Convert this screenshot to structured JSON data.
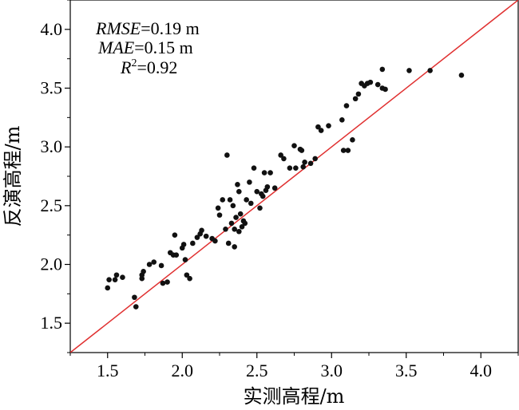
{
  "chart_data": {
    "type": "scatter",
    "xlabel": "实测高程/m",
    "ylabel": "反演高程/m",
    "xlim": [
      1.25,
      4.25
    ],
    "ylim": [
      1.25,
      4.25
    ],
    "x_ticks": [
      "1.5",
      "2.0",
      "2.5",
      "3.0",
      "3.5",
      "4.0"
    ],
    "y_ticks": [
      "1.5",
      "2.0",
      "2.5",
      "3.0",
      "3.5",
      "4.0"
    ],
    "grid": false,
    "reference_line": {
      "from": [
        1.25,
        1.25
      ],
      "to": [
        4.25,
        4.25
      ],
      "color": "#e03030"
    },
    "point_color": "#111111",
    "annotations": {
      "rmse_label": "RMSE",
      "rmse_value": "=0.19 m",
      "mae_label": "MAE",
      "mae_value": "=0.15 m",
      "r_label": "R",
      "r_sup": "2",
      "r_value": "=0.92"
    },
    "points": [
      [
        1.5,
        1.8
      ],
      [
        1.51,
        1.87
      ],
      [
        1.55,
        1.87
      ],
      [
        1.56,
        1.91
      ],
      [
        1.6,
        1.89
      ],
      [
        1.68,
        1.72
      ],
      [
        1.69,
        1.64
      ],
      [
        1.73,
        1.91
      ],
      [
        1.73,
        1.88
      ],
      [
        1.74,
        1.94
      ],
      [
        1.78,
        2.0
      ],
      [
        1.81,
        2.02
      ],
      [
        1.86,
        1.99
      ],
      [
        1.87,
        1.84
      ],
      [
        1.9,
        1.85
      ],
      [
        1.92,
        2.1
      ],
      [
        1.94,
        2.08
      ],
      [
        1.96,
        2.08
      ],
      [
        1.95,
        2.25
      ],
      [
        2.0,
        2.14
      ],
      [
        2.01,
        2.17
      ],
      [
        2.02,
        2.04
      ],
      [
        2.03,
        1.91
      ],
      [
        2.05,
        1.88
      ],
      [
        2.07,
        2.18
      ],
      [
        2.1,
        2.23
      ],
      [
        2.12,
        2.26
      ],
      [
        2.13,
        2.29
      ],
      [
        2.16,
        2.24
      ],
      [
        2.2,
        2.22
      ],
      [
        2.22,
        2.2
      ],
      [
        2.24,
        2.48
      ],
      [
        2.25,
        2.42
      ],
      [
        2.27,
        2.55
      ],
      [
        2.29,
        2.3
      ],
      [
        2.3,
        2.93
      ],
      [
        2.31,
        2.18
      ],
      [
        2.32,
        2.55
      ],
      [
        2.33,
        2.35
      ],
      [
        2.34,
        2.5
      ],
      [
        2.35,
        2.15
      ],
      [
        2.35,
        2.3
      ],
      [
        2.36,
        2.4
      ],
      [
        2.37,
        2.68
      ],
      [
        2.38,
        2.62
      ],
      [
        2.38,
        2.28
      ],
      [
        2.39,
        2.43
      ],
      [
        2.4,
        2.32
      ],
      [
        2.41,
        2.37
      ],
      [
        2.42,
        2.35
      ],
      [
        2.43,
        2.55
      ],
      [
        2.45,
        2.7
      ],
      [
        2.46,
        2.52
      ],
      [
        2.48,
        2.82
      ],
      [
        2.5,
        2.62
      ],
      [
        2.52,
        2.48
      ],
      [
        2.53,
        2.6
      ],
      [
        2.54,
        2.58
      ],
      [
        2.55,
        2.78
      ],
      [
        2.56,
        2.63
      ],
      [
        2.57,
        2.66
      ],
      [
        2.59,
        2.78
      ],
      [
        2.62,
        2.65
      ],
      [
        2.66,
        2.93
      ],
      [
        2.68,
        2.9
      ],
      [
        2.72,
        2.82
      ],
      [
        2.75,
        3.01
      ],
      [
        2.76,
        2.82
      ],
      [
        2.79,
        2.98
      ],
      [
        2.8,
        2.97
      ],
      [
        2.81,
        2.83
      ],
      [
        2.82,
        2.87
      ],
      [
        2.86,
        2.86
      ],
      [
        2.89,
        2.9
      ],
      [
        2.91,
        3.17
      ],
      [
        2.93,
        3.14
      ],
      [
        2.98,
        3.18
      ],
      [
        3.07,
        3.23
      ],
      [
        3.08,
        2.97
      ],
      [
        3.1,
        3.35
      ],
      [
        3.11,
        2.97
      ],
      [
        3.14,
        3.06
      ],
      [
        3.16,
        3.41
      ],
      [
        3.18,
        3.45
      ],
      [
        3.2,
        3.54
      ],
      [
        3.22,
        3.52
      ],
      [
        3.24,
        3.54
      ],
      [
        3.26,
        3.55
      ],
      [
        3.31,
        3.53
      ],
      [
        3.34,
        3.66
      ],
      [
        3.34,
        3.5
      ],
      [
        3.36,
        3.49
      ],
      [
        3.52,
        3.65
      ],
      [
        3.66,
        3.65
      ],
      [
        3.87,
        3.61
      ]
    ]
  }
}
